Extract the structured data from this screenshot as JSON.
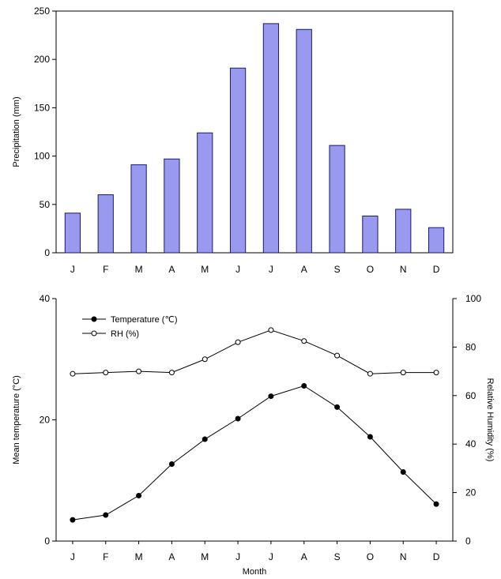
{
  "chart_data": [
    {
      "type": "bar",
      "title": "",
      "xlabel": "",
      "ylabel": "Precipitation (mm)",
      "categories": [
        "J",
        "F",
        "M",
        "A",
        "M",
        "J",
        "J",
        "A",
        "S",
        "O",
        "N",
        "D"
      ],
      "values": [
        41,
        60,
        91,
        97,
        124,
        191,
        237,
        231,
        111,
        38,
        45,
        26
      ],
      "ylim": [
        0,
        250
      ],
      "yticks": [
        0,
        50,
        100,
        150,
        200,
        250
      ],
      "grid": false,
      "colors": {
        "bar_fill": "#9999f0",
        "bar_stroke": "#1a1a66"
      }
    },
    {
      "type": "line",
      "title": "",
      "xlabel": "Month",
      "categories": [
        "J",
        "F",
        "M",
        "A",
        "M",
        "J",
        "J",
        "A",
        "S",
        "O",
        "N",
        "D"
      ],
      "y_left": {
        "label": "Mean temperature (°C)",
        "lim": [
          0,
          40
        ],
        "ticks": [
          0,
          20,
          40
        ]
      },
      "y_right": {
        "label": "Relative Humidity (%)",
        "lim": [
          0,
          100
        ],
        "ticks": [
          0,
          20,
          40,
          60,
          80,
          100
        ]
      },
      "legend_position": "top-left",
      "grid": false,
      "series": [
        {
          "name": "Temperature (℃)",
          "axis": "left",
          "marker": "filled-circle",
          "values": [
            3.5,
            4.3,
            7.5,
            12.7,
            16.8,
            20.2,
            23.9,
            25.6,
            22.1,
            17.2,
            11.4,
            6.1
          ]
        },
        {
          "name": "RH (%)",
          "axis": "right",
          "marker": "open-circle",
          "values": [
            69,
            69.5,
            70,
            69.5,
            75,
            82,
            87,
            82.5,
            76.5,
            69,
            69.5,
            69.5
          ]
        }
      ]
    }
  ]
}
